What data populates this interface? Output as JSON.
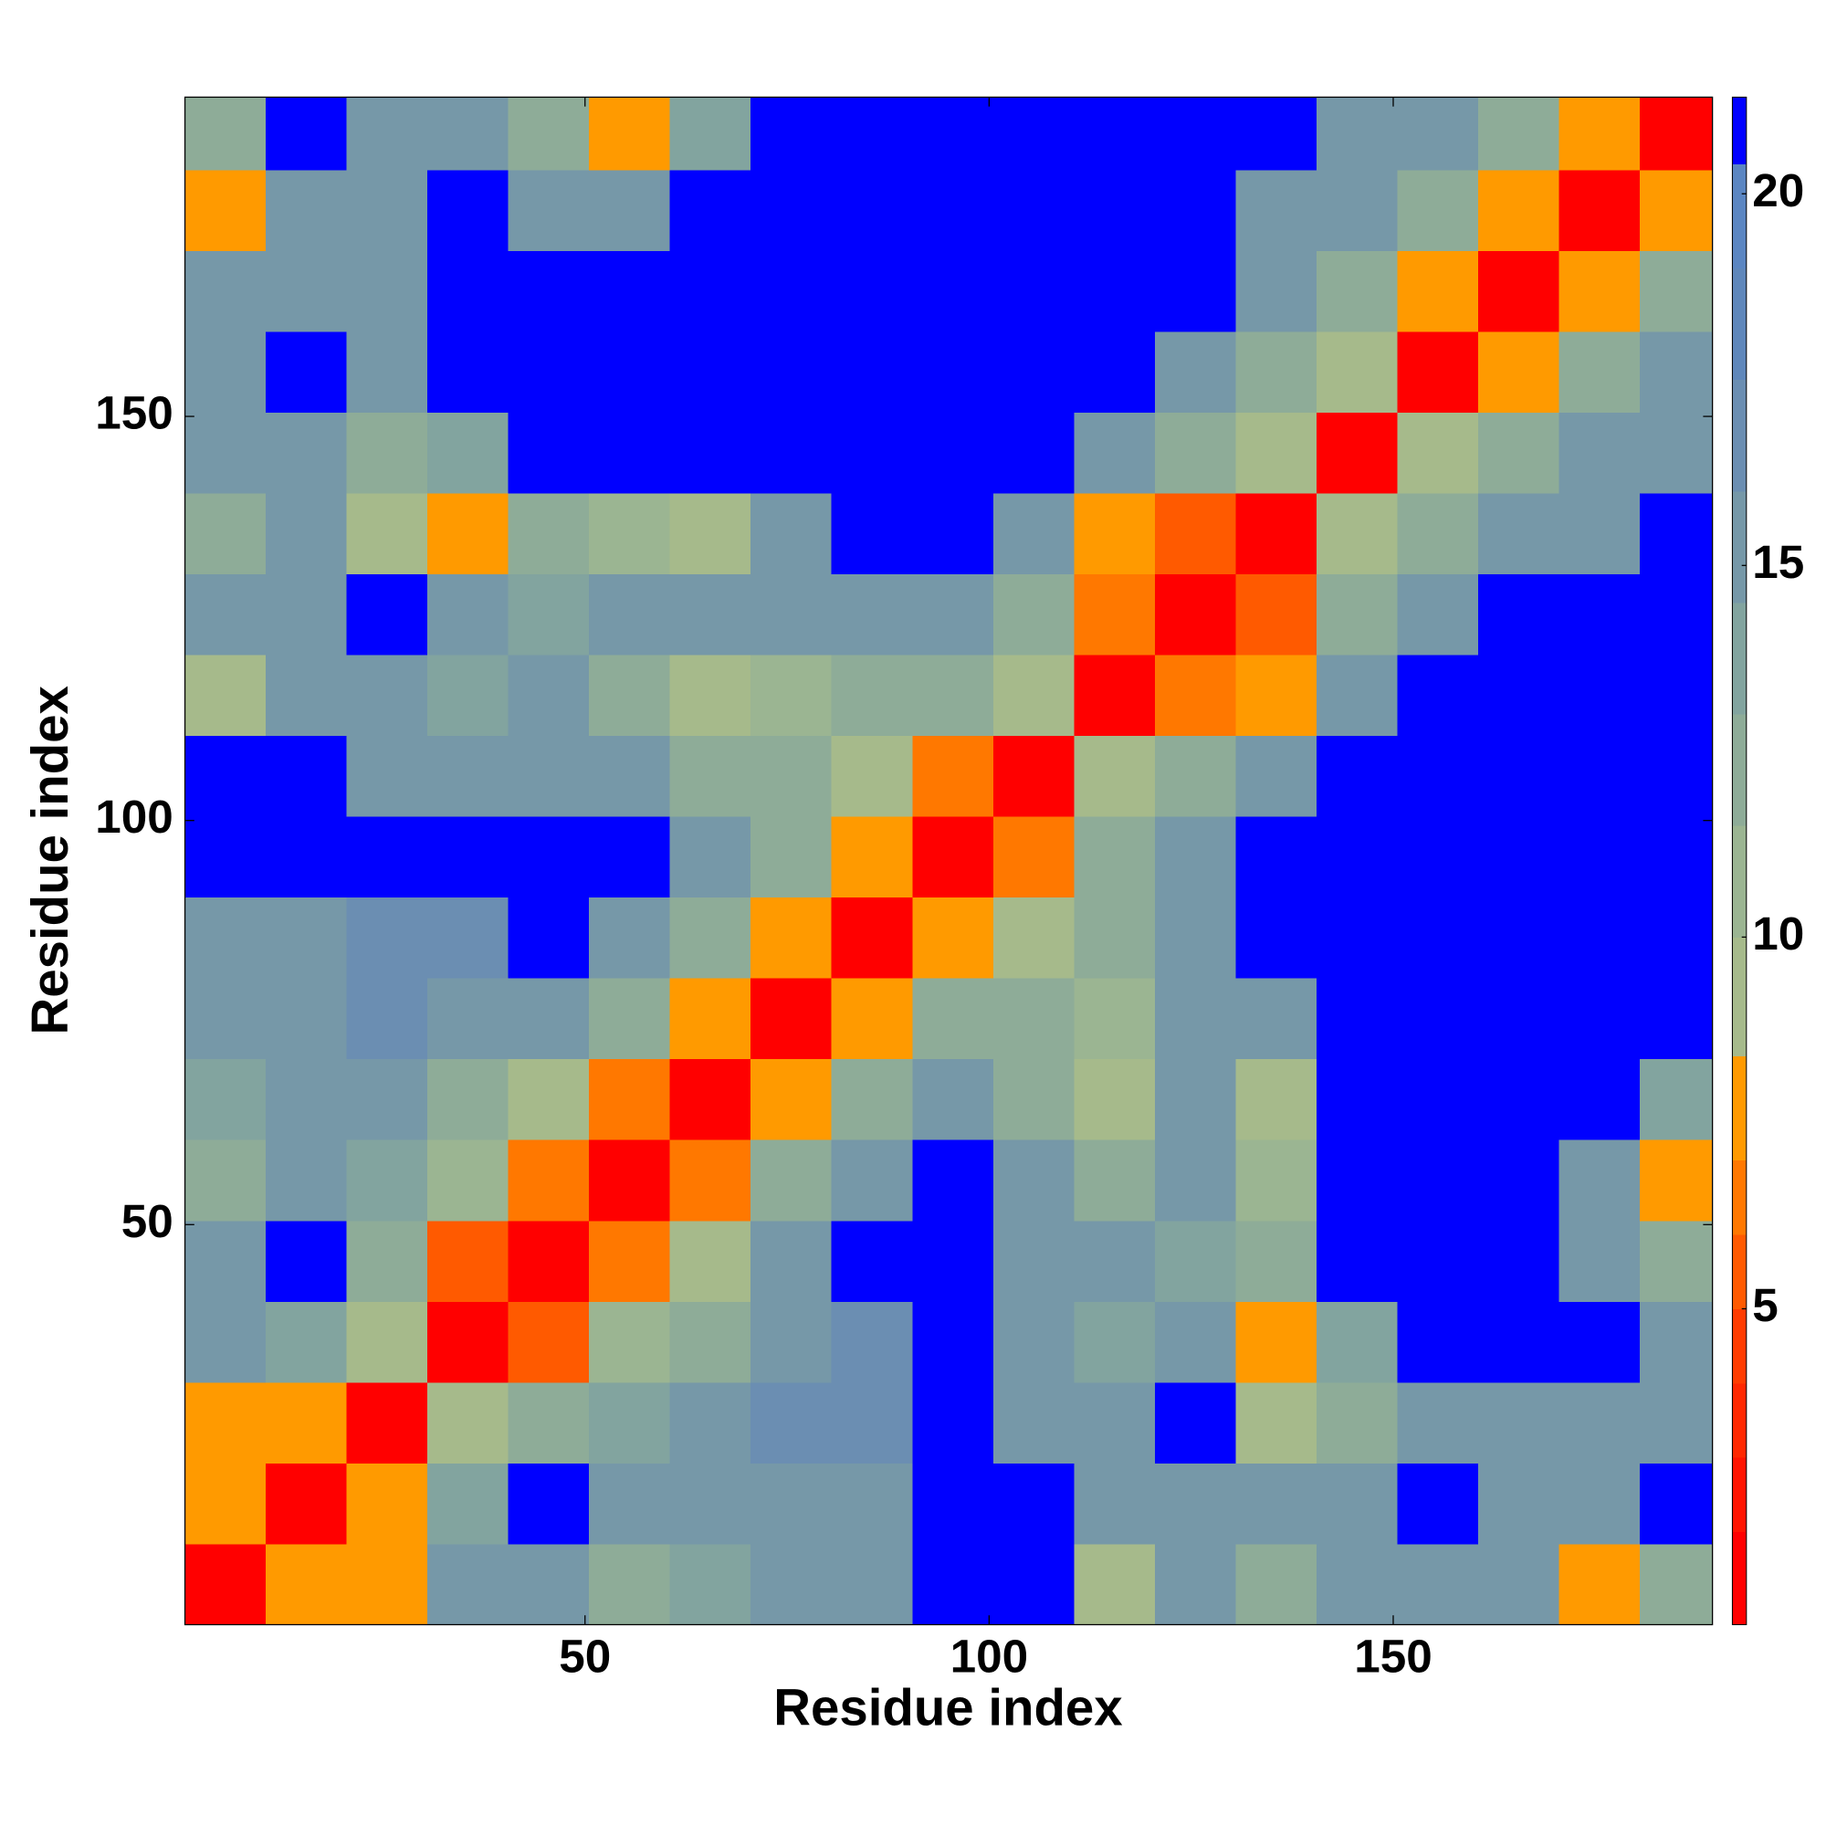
{
  "chart_data": {
    "type": "heatmap",
    "x_label": "Residue index",
    "y_label": "Residue index",
    "xlim": [
      0.5,
      189.5
    ],
    "ylim": [
      0.5,
      189.5
    ],
    "xticks": [
      50,
      100,
      150
    ],
    "yticks": [
      50,
      100,
      150
    ],
    "x_bins": [
      0.5,
      10.5,
      20.5,
      30.5,
      40.5,
      50.5,
      60.5,
      70.5,
      80.5,
      90.5,
      100.5,
      110.5,
      120.5,
      130.5,
      140.5,
      150.5,
      160.5,
      170.5,
      180.5,
      189.5
    ],
    "y_bins": [
      0.5,
      10.5,
      20.5,
      30.5,
      40.5,
      50.5,
      60.5,
      70.5,
      80.5,
      90.5,
      100.5,
      110.5,
      120.5,
      130.5,
      140.5,
      150.5,
      160.5,
      170.5,
      180.5,
      189.5
    ],
    "values": [
      [
        2,
        8,
        8,
        15,
        16,
        13,
        14,
        16,
        16,
        21,
        21,
        9,
        16,
        12,
        16,
        16,
        15,
        8,
        12
      ],
      [
        8,
        2,
        8,
        14,
        21,
        16,
        15,
        16,
        16,
        21,
        21,
        15,
        16,
        15,
        16,
        21,
        16,
        16,
        21
      ],
      [
        8,
        8,
        2,
        10,
        12,
        14,
        15,
        17,
        17,
        21,
        16,
        15,
        21,
        9,
        12,
        16,
        16,
        16,
        16
      ],
      [
        15,
        14,
        10,
        2,
        6,
        11,
        13,
        15,
        17,
        21,
        16,
        14,
        15,
        8,
        14,
        21,
        21,
        21,
        15
      ],
      [
        16,
        21,
        12,
        6,
        2,
        7,
        10,
        15,
        21,
        21,
        16,
        16,
        14,
        12,
        21,
        21,
        21,
        16,
        13
      ],
      [
        13,
        16,
        14,
        11,
        7,
        2,
        7,
        12,
        16,
        21,
        16,
        13,
        16,
        11,
        21,
        21,
        21,
        16,
        8
      ],
      [
        14,
        15,
        15,
        13,
        10,
        7,
        2,
        8,
        12,
        15,
        13,
        9,
        15,
        9,
        21,
        21,
        21,
        21,
        14
      ],
      [
        16,
        16,
        17,
        15,
        15,
        12,
        8,
        2,
        8,
        12,
        12,
        11,
        16,
        15,
        21,
        21,
        21,
        21,
        21
      ],
      [
        16,
        16,
        17,
        17,
        21,
        16,
        12,
        8,
        2,
        8,
        10,
        13,
        16,
        21,
        21,
        21,
        21,
        21,
        21
      ],
      [
        21,
        21,
        21,
        21,
        21,
        21,
        15,
        12,
        8,
        2,
        7,
        12,
        16,
        21,
        21,
        21,
        21,
        21,
        21
      ],
      [
        21,
        21,
        16,
        16,
        16,
        16,
        13,
        12,
        10,
        7,
        2,
        9,
        12,
        15,
        21,
        21,
        21,
        21,
        21
      ],
      [
        9,
        15,
        15,
        14,
        16,
        13,
        9,
        11,
        13,
        12,
        9,
        2,
        7,
        8,
        15,
        21,
        21,
        21,
        21
      ],
      [
        16,
        16,
        21,
        15,
        14,
        16,
        15,
        16,
        16,
        16,
        12,
        7,
        2,
        6,
        12,
        16,
        21,
        21,
        21
      ],
      [
        12,
        15,
        9,
        8,
        12,
        11,
        9,
        15,
        21,
        21,
        15,
        8,
        6,
        2,
        9,
        13,
        15,
        16,
        21
      ],
      [
        16,
        16,
        12,
        14,
        21,
        21,
        21,
        21,
        21,
        21,
        21,
        15,
        12,
        9,
        2,
        9,
        12,
        15,
        16
      ],
      [
        16,
        21,
        16,
        21,
        21,
        21,
        21,
        21,
        21,
        21,
        21,
        21,
        16,
        13,
        9,
        2,
        8,
        12,
        15
      ],
      [
        15,
        16,
        16,
        21,
        21,
        21,
        21,
        21,
        21,
        21,
        21,
        21,
        21,
        15,
        12,
        8,
        2,
        8,
        12
      ],
      [
        8,
        16,
        16,
        21,
        16,
        16,
        21,
        21,
        21,
        21,
        21,
        21,
        21,
        16,
        15,
        12,
        8,
        2,
        8
      ],
      [
        12,
        21,
        16,
        15,
        13,
        8,
        14,
        21,
        21,
        21,
        21,
        21,
        21,
        21,
        16,
        15,
        12,
        8,
        2
      ]
    ],
    "colorbar": {
      "lim": [
        0.75,
        21.3
      ],
      "ticks": [
        5,
        10,
        15,
        20
      ],
      "levels": [
        0.75,
        2,
        3,
        4,
        5,
        6,
        7,
        8.4,
        10,
        11.5,
        13,
        14.5,
        16,
        17.5,
        19,
        20.4,
        21.3
      ],
      "colors": [
        "#ff0000",
        "#ff1400",
        "#ff2800",
        "#ff3c00",
        "#ff5a00",
        "#ff7800",
        "#ff9a00",
        "#a6ba8b",
        "#9bb592",
        "#8eac98",
        "#82a49f",
        "#7698a8",
        "#6b8eb2",
        "#5f87bb",
        "#5b86c2",
        "#0000ff"
      ]
    }
  }
}
